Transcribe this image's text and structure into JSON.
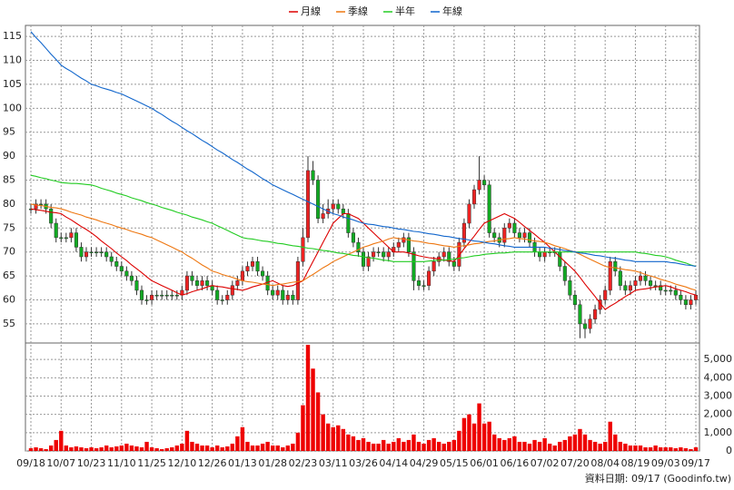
{
  "chart_data": {
    "type": "candlestick",
    "footer": "資料日期: 09/17 (Goodinfo.tw)",
    "categories": [
      "09/18",
      null,
      null,
      null,
      null,
      null,
      "10/07",
      null,
      null,
      null,
      null,
      null,
      "10/23",
      null,
      null,
      null,
      null,
      null,
      "11/10",
      null,
      null,
      null,
      null,
      null,
      "11/25",
      null,
      null,
      null,
      null,
      null,
      "12/10",
      null,
      null,
      null,
      null,
      null,
      "12/26",
      null,
      null,
      null,
      null,
      null,
      "01/13",
      null,
      null,
      null,
      null,
      null,
      "01/28",
      null,
      null,
      null,
      null,
      null,
      "02/23",
      null,
      null,
      null,
      null,
      null,
      "03/11",
      null,
      null,
      null,
      null,
      null,
      "03/26",
      null,
      null,
      null,
      null,
      null,
      "04/14",
      null,
      null,
      null,
      null,
      null,
      "04/29",
      null,
      null,
      null,
      null,
      null,
      "05/15",
      null,
      null,
      null,
      null,
      null,
      "06/01",
      null,
      null,
      null,
      null,
      null,
      "06/16",
      null,
      null,
      null,
      null,
      null,
      "07/02",
      null,
      null,
      null,
      null,
      null,
      "07/20",
      null,
      null,
      null,
      null,
      null,
      "08/04",
      null,
      null,
      null,
      null,
      null,
      "08/19",
      null,
      null,
      null,
      null,
      null,
      "09/03",
      null,
      null,
      null,
      null,
      null,
      "09/17"
    ],
    "open": [
      79,
      79,
      80,
      80,
      79,
      76,
      73,
      73,
      73,
      74,
      71,
      69,
      70,
      70,
      70,
      70,
      69,
      68,
      67,
      66,
      65,
      64,
      62,
      60,
      60,
      61,
      61,
      61,
      61,
      61,
      61,
      62,
      65,
      64,
      63,
      64,
      63,
      62,
      60,
      60,
      61,
      63,
      64,
      66,
      67,
      68,
      66,
      65,
      62,
      61,
      62,
      60,
      61,
      60,
      68,
      73,
      87,
      85,
      77,
      78,
      79,
      80,
      79,
      78,
      74,
      72,
      70,
      67,
      69,
      70,
      70,
      69,
      70,
      71,
      72,
      73,
      70,
      64,
      63,
      63,
      66,
      68,
      69,
      70,
      68,
      67,
      72,
      76,
      80,
      83,
      85,
      84,
      74,
      73,
      72,
      75,
      76,
      74,
      73,
      74,
      72,
      70,
      69,
      70,
      70,
      70,
      67,
      64,
      61,
      59,
      55,
      54,
      56,
      58,
      60,
      62,
      68,
      66,
      63,
      62,
      63,
      64,
      65,
      64,
      63,
      63,
      62,
      62,
      62,
      61,
      60,
      59,
      60
    ],
    "high": [
      80,
      81,
      81,
      81,
      80,
      77,
      74,
      74,
      75,
      75,
      72,
      71,
      71,
      71,
      71,
      71,
      70,
      69,
      68,
      67,
      66,
      65,
      63,
      61,
      62,
      62,
      62,
      62,
      62,
      62,
      63,
      66,
      66,
      65,
      65,
      65,
      64,
      63,
      61,
      62,
      64,
      65,
      67,
      68,
      69,
      69,
      67,
      66,
      63,
      63,
      63,
      62,
      62,
      69,
      75,
      90,
      89,
      86,
      80,
      81,
      81,
      81,
      80,
      79,
      75,
      73,
      71,
      70,
      71,
      71,
      71,
      71,
      72,
      73,
      74,
      74,
      71,
      65,
      64,
      67,
      69,
      70,
      71,
      71,
      69,
      73,
      77,
      81,
      84,
      90,
      86,
      85,
      75,
      74,
      76,
      77,
      77,
      75,
      75,
      75,
      73,
      71,
      71,
      71,
      71,
      71,
      68,
      65,
      62,
      60,
      56,
      57,
      59,
      61,
      63,
      69,
      69,
      67,
      64,
      64,
      65,
      66,
      66,
      65,
      64,
      64,
      63,
      63,
      63,
      62,
      61,
      61,
      62
    ],
    "low": [
      78,
      78,
      79,
      78,
      75,
      72,
      72,
      72,
      72,
      70,
      68,
      68,
      69,
      69,
      69,
      68,
      67,
      66,
      65,
      64,
      63,
      61,
      59,
      59,
      59,
      60,
      60,
      60,
      60,
      60,
      60,
      61,
      63,
      62,
      62,
      62,
      61,
      59,
      59,
      59,
      60,
      62,
      63,
      65,
      66,
      65,
      64,
      61,
      60,
      60,
      59,
      59,
      59,
      59,
      67,
      72,
      84,
      76,
      76,
      77,
      78,
      78,
      77,
      73,
      71,
      69,
      66,
      66,
      68,
      69,
      68,
      68,
      69,
      70,
      71,
      69,
      62,
      62,
      62,
      62,
      65,
      67,
      68,
      67,
      66,
      66,
      71,
      75,
      79,
      82,
      83,
      73,
      72,
      71,
      71,
      74,
      73,
      72,
      72,
      71,
      69,
      68,
      68,
      69,
      69,
      66,
      63,
      60,
      58,
      52,
      52,
      53,
      55,
      57,
      59,
      61,
      65,
      62,
      61,
      61,
      62,
      63,
      63,
      62,
      62,
      61,
      61,
      61,
      60,
      59,
      58,
      58,
      59
    ],
    "close": [
      79,
      80,
      80,
      79,
      76,
      73,
      73,
      73,
      74,
      71,
      69,
      70,
      70,
      70,
      70,
      69,
      68,
      67,
      66,
      65,
      64,
      62,
      60,
      60,
      61,
      61,
      61,
      61,
      61,
      61,
      62,
      65,
      64,
      63,
      64,
      63,
      62,
      60,
      60,
      61,
      63,
      64,
      66,
      67,
      68,
      66,
      65,
      62,
      61,
      62,
      60,
      61,
      60,
      68,
      73,
      87,
      85,
      77,
      78,
      79,
      80,
      79,
      78,
      74,
      72,
      70,
      67,
      69,
      70,
      70,
      69,
      70,
      71,
      72,
      73,
      70,
      64,
      63,
      63,
      66,
      68,
      69,
      70,
      68,
      67,
      72,
      76,
      80,
      83,
      85,
      84,
      74,
      73,
      72,
      75,
      76,
      74,
      73,
      74,
      72,
      70,
      69,
      70,
      70,
      70,
      67,
      64,
      61,
      59,
      55,
      54,
      56,
      58,
      60,
      62,
      68,
      66,
      63,
      62,
      63,
      64,
      65,
      64,
      63,
      63,
      62,
      62,
      62,
      61,
      60,
      59,
      60,
      61
    ],
    "up_color": "#ee2222",
    "down_color": "#11aa22",
    "series": [
      {
        "name": "月線",
        "color": "#dd0000",
        "values": [
          79,
          78.8,
          78.7,
          78.5,
          78.3,
          78.2,
          78,
          77.3,
          76.7,
          76,
          75.3,
          74.7,
          74,
          73.2,
          72.3,
          71.5,
          70.7,
          69.8,
          69,
          68.2,
          67.3,
          66.5,
          65.7,
          64.8,
          64,
          63.5,
          63,
          62.5,
          62,
          61.5,
          61,
          61.3,
          61.7,
          62,
          62.3,
          62.7,
          63,
          62.8,
          62.7,
          62.5,
          62.3,
          62.2,
          62,
          62.3,
          62.7,
          63,
          63.3,
          63.7,
          64,
          63.5,
          63,
          62.8,
          63,
          63.5,
          64,
          66,
          68,
          70,
          72,
          74,
          76,
          77,
          78,
          78,
          77.5,
          77,
          76,
          75,
          74,
          73,
          72,
          71,
          70,
          70,
          70,
          69.8,
          69.5,
          69.2,
          69,
          68.8,
          68.7,
          68.5,
          68.3,
          68.2,
          68,
          69.3,
          70.7,
          72,
          73.3,
          74.7,
          76,
          76.5,
          77,
          77.5,
          78,
          77.5,
          77,
          76.2,
          75.3,
          74.5,
          73.7,
          72.8,
          72,
          71,
          70,
          69,
          68,
          67,
          66,
          64.7,
          63.3,
          62,
          60.7,
          59.3,
          58,
          58.7,
          59.3,
          60,
          60.7,
          61.3,
          62,
          62.2,
          62.3,
          62.5,
          62.7,
          62.8,
          63,
          62.7,
          62.3,
          62,
          61.7,
          61.3,
          61
        ]
      },
      {
        "name": "季線",
        "color": "#ee7711",
        "values": [
          80,
          79.8,
          79.7,
          79.5,
          79.3,
          79.2,
          79,
          78.7,
          78.3,
          78,
          77.7,
          77.3,
          77,
          76.7,
          76.3,
          76,
          75.7,
          75.3,
          75,
          74.7,
          74.3,
          74,
          73.7,
          73.3,
          73,
          72.5,
          72,
          71.5,
          71,
          70.5,
          70,
          69.3,
          68.7,
          68,
          67.3,
          66.7,
          66,
          65.7,
          65.3,
          65,
          64.7,
          64.3,
          64,
          63.8,
          63.7,
          63.5,
          63.3,
          63.2,
          63,
          63.2,
          63.3,
          63.5,
          63.7,
          63.8,
          64,
          64.7,
          65.3,
          66,
          66.7,
          67.3,
          68,
          68.5,
          69,
          69.5,
          70,
          70.5,
          71,
          71.3,
          71.7,
          72,
          72.3,
          72.7,
          73,
          72.8,
          72.7,
          72.5,
          72.3,
          72.2,
          72,
          71.8,
          71.7,
          71.5,
          71.3,
          71.2,
          71,
          71.2,
          71.3,
          71.5,
          71.7,
          71.8,
          72,
          72.2,
          72.3,
          72.5,
          72.7,
          72.8,
          73,
          72.8,
          72.7,
          72.5,
          72.3,
          72.2,
          72,
          71.7,
          71.3,
          71,
          70.7,
          70.3,
          70,
          69.5,
          69,
          68.5,
          68,
          67.5,
          67,
          66.8,
          66.7,
          66.5,
          66.3,
          66.2,
          66,
          65.7,
          65.3,
          65,
          64.7,
          64.3,
          64,
          63.7,
          63.3,
          63,
          62.7,
          62.3,
          62
        ]
      },
      {
        "name": "半年",
        "color": "#22cc22",
        "values": [
          86,
          85.8,
          85.5,
          85.3,
          85,
          84.8,
          84.5,
          84.4,
          84.3,
          84.3,
          84.2,
          84.1,
          84,
          83.7,
          83.3,
          83,
          82.7,
          82.3,
          82,
          81.7,
          81.3,
          81,
          80.7,
          80.3,
          80,
          79.7,
          79.3,
          79,
          78.7,
          78.3,
          78,
          77.7,
          77.3,
          77,
          76.7,
          76.3,
          76,
          75.5,
          75,
          74.5,
          74,
          73.5,
          73,
          72.8,
          72.7,
          72.5,
          72.3,
          72.2,
          72,
          71.8,
          71.7,
          71.5,
          71.3,
          71.2,
          71,
          70.8,
          70.7,
          70.5,
          70.3,
          70.2,
          70,
          69.8,
          69.7,
          69.5,
          69.3,
          69.2,
          69,
          68.8,
          68.7,
          68.5,
          68.3,
          68.2,
          68,
          68,
          68,
          68,
          68,
          68,
          68,
          68.1,
          68.2,
          68.3,
          68.3,
          68.4,
          68.5,
          68.7,
          68.8,
          69,
          69.2,
          69.3,
          69.5,
          69.6,
          69.7,
          69.8,
          69.8,
          69.9,
          70,
          70,
          70,
          70,
          70,
          70,
          70,
          70,
          70,
          70,
          70,
          70,
          70,
          70,
          70,
          70,
          70,
          70,
          70,
          70,
          70,
          70,
          70,
          70,
          70,
          69.8,
          69.7,
          69.5,
          69.3,
          69.2,
          69,
          68.7,
          68.3,
          68,
          67.7,
          67.3,
          67
        ]
      },
      {
        "name": "年線",
        "color": "#1166cc",
        "values": [
          116,
          114.8,
          113.7,
          112.5,
          111.3,
          110.2,
          109,
          108.3,
          107.7,
          107,
          106.3,
          105.7,
          105,
          104.7,
          104.3,
          104,
          103.7,
          103.3,
          103,
          102.5,
          102,
          101.5,
          101,
          100.5,
          100,
          99.3,
          98.7,
          98,
          97.3,
          96.7,
          96,
          95.3,
          94.7,
          94,
          93.3,
          92.7,
          92,
          91.3,
          90.7,
          90,
          89.3,
          88.7,
          88,
          87.3,
          86.7,
          86,
          85.3,
          84.7,
          84,
          83.5,
          83,
          82.5,
          82,
          81.5,
          81,
          80.5,
          80,
          79.5,
          79,
          78.5,
          78,
          77.7,
          77.3,
          77,
          76.7,
          76.3,
          76,
          75.8,
          75.7,
          75.5,
          75.3,
          75.2,
          75,
          74.8,
          74.7,
          74.5,
          74.3,
          74.2,
          74,
          73.8,
          73.7,
          73.5,
          73.3,
          73.2,
          73,
          72.8,
          72.7,
          72.5,
          72.3,
          72.2,
          72,
          71.8,
          71.7,
          71.5,
          71.3,
          71.2,
          71,
          71,
          71,
          71,
          71,
          71,
          71,
          70.8,
          70.7,
          70.5,
          70.3,
          70.2,
          70,
          69.8,
          69.7,
          69.5,
          69.3,
          69.2,
          69,
          68.8,
          68.7,
          68.5,
          68.3,
          68.2,
          68,
          68,
          68,
          68,
          68,
          68,
          68,
          67.8,
          67.7,
          67.5,
          67.3,
          67.2,
          67
        ]
      }
    ],
    "volume": {
      "color": "#ee0000",
      "axis": "y2",
      "values": [
        150,
        200,
        150,
        100,
        300,
        600,
        1100,
        300,
        200,
        250,
        200,
        150,
        200,
        150,
        200,
        300,
        200,
        250,
        300,
        400,
        300,
        250,
        200,
        500,
        200,
        150,
        100,
        150,
        200,
        300,
        400,
        1100,
        500,
        400,
        300,
        300,
        200,
        300,
        200,
        250,
        400,
        800,
        1300,
        500,
        300,
        300,
        400,
        500,
        300,
        300,
        200,
        300,
        400,
        1000,
        2500,
        5800,
        4500,
        3200,
        2000,
        1500,
        1300,
        1400,
        1200,
        900,
        800,
        600,
        700,
        500,
        400,
        400,
        600,
        400,
        500,
        700,
        500,
        600,
        900,
        500,
        400,
        600,
        700,
        500,
        400,
        500,
        600,
        1100,
        1800,
        2000,
        1500,
        2600,
        1500,
        1600,
        900,
        700,
        600,
        700,
        800,
        500,
        500,
        400,
        600,
        500,
        700,
        400,
        300,
        500,
        600,
        800,
        900,
        1200,
        900,
        600,
        500,
        400,
        500,
        1600,
        900,
        500,
        400,
        300,
        300,
        300,
        200,
        200,
        300,
        200,
        200,
        200,
        150,
        200,
        150,
        100,
        200
      ]
    },
    "ylim": [
      51,
      117.3
    ],
    "yticks": [
      55,
      60,
      65,
      70,
      75,
      80,
      85,
      90,
      95,
      100,
      105,
      110,
      115
    ],
    "y2lim": [
      0,
      5900
    ],
    "y2ticks": [
      0,
      {
        "value": 1000,
        "label": "1,000"
      },
      {
        "value": 2000,
        "label": "2,000"
      },
      {
        "value": 3000,
        "label": "3,000"
      },
      {
        "value": 4000,
        "label": "4,000"
      },
      {
        "value": 5000,
        "label": "5,000"
      }
    ],
    "grid": true
  }
}
